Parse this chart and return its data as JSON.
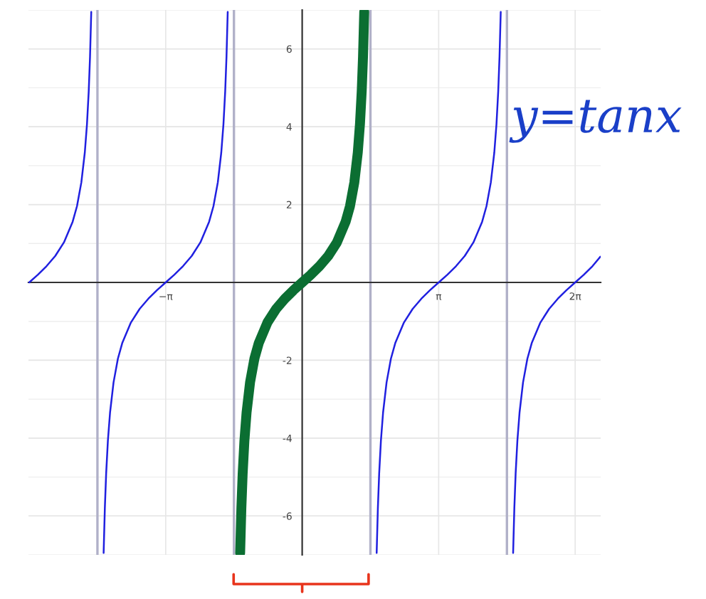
{
  "chart_data": {
    "type": "line",
    "xlim": [
      -6.3,
      6.87
    ],
    "ylim": [
      -7,
      7
    ],
    "xticks": [
      {
        "value": -3.1416,
        "label": "−π"
      },
      {
        "value": 3.1416,
        "label": "π"
      },
      {
        "value": 6.2832,
        "label": "2π"
      }
    ],
    "yticks": [
      -6,
      -4,
      -2,
      2,
      4,
      6
    ],
    "grid": true,
    "marker": "none",
    "line_style": "solid",
    "annotations": [
      "y=tanx"
    ],
    "ref_lines": [
      {
        "axis": "x",
        "value": -4.7124,
        "color": "#b0b0c8"
      },
      {
        "axis": "x",
        "value": -1.5708,
        "color": "#b0b0c8"
      },
      {
        "axis": "x",
        "value": 1.5708,
        "color": "#b0b0c8"
      },
      {
        "axis": "x",
        "value": 4.7124,
        "color": "#b0b0c8"
      }
    ],
    "series": [
      {
        "color": "#2020e0",
        "x": [
          -6.283,
          -6.083,
          -5.883,
          -5.683,
          -5.483,
          -5.283,
          -5.183,
          -5.083,
          -5.003,
          -4.953,
          -4.913,
          -4.883,
          -4.855,
          null,
          -4.57,
          -4.542,
          -4.512,
          -4.472,
          -4.422,
          -4.342,
          -4.242,
          -4.142,
          -3.942,
          -3.742,
          -3.542,
          -3.342,
          -3.142,
          -2.942,
          -2.742,
          -2.542,
          -2.342,
          -2.142,
          -2.042,
          -1.942,
          -1.862,
          -1.812,
          -1.772,
          -1.742,
          -1.714,
          null,
          1.714,
          1.742,
          1.772,
          1.812,
          1.862,
          1.942,
          2.042,
          2.142,
          2.342,
          2.542,
          2.742,
          2.942,
          3.142,
          3.342,
          3.542,
          3.742,
          3.942,
          4.142,
          4.242,
          4.342,
          4.422,
          4.472,
          4.512,
          4.542,
          4.57,
          null,
          4.855,
          4.883,
          4.913,
          4.953,
          5.003,
          5.083,
          5.183,
          5.283,
          5.483,
          5.683,
          5.883,
          6.083,
          6.283,
          6.483,
          6.683,
          6.863
        ],
        "values": [
          0,
          0.2,
          0.42,
          0.68,
          1.03,
          1.56,
          1.96,
          2.57,
          3.34,
          4.07,
          4.91,
          5.8,
          6.95,
          null,
          -6.95,
          -5.8,
          -4.91,
          -4.07,
          -3.34,
          -2.57,
          -1.96,
          -1.56,
          -1.03,
          -0.68,
          -0.42,
          -0.2,
          0,
          0.2,
          0.42,
          0.68,
          1.03,
          1.56,
          1.96,
          2.57,
          3.34,
          4.07,
          4.91,
          5.8,
          6.95,
          null,
          -6.95,
          -5.8,
          -4.91,
          -4.07,
          -3.34,
          -2.57,
          -1.96,
          -1.56,
          -1.03,
          -0.68,
          -0.42,
          -0.2,
          0,
          0.2,
          0.42,
          0.68,
          1.03,
          1.56,
          1.96,
          2.57,
          3.34,
          4.07,
          4.91,
          5.8,
          6.95,
          null,
          -6.95,
          -5.8,
          -4.91,
          -4.07,
          -3.34,
          -2.57,
          -1.96,
          -1.56,
          -1.03,
          -0.68,
          -0.42,
          -0.2,
          0,
          0.2,
          0.42,
          0.66
        ]
      },
      {
        "color": "#0b6e32",
        "x": [
          -1.428,
          -1.4,
          -1.37,
          -1.33,
          -1.28,
          -1.2,
          -1.1,
          -1.0,
          -0.8,
          -0.6,
          -0.4,
          -0.2,
          0,
          0.2,
          0.4,
          0.6,
          0.8,
          1.0,
          1.1,
          1.2,
          1.28,
          1.33,
          1.37,
          1.4,
          1.428
        ],
        "values": [
          -6.95,
          -5.8,
          -4.91,
          -4.07,
          -3.34,
          -2.57,
          -1.96,
          -1.56,
          -1.03,
          -0.68,
          -0.42,
          -0.2,
          0,
          0.2,
          0.42,
          0.68,
          1.03,
          1.56,
          1.96,
          2.57,
          3.34,
          4.07,
          4.91,
          5.8,
          6.95
        ]
      }
    ]
  }
}
